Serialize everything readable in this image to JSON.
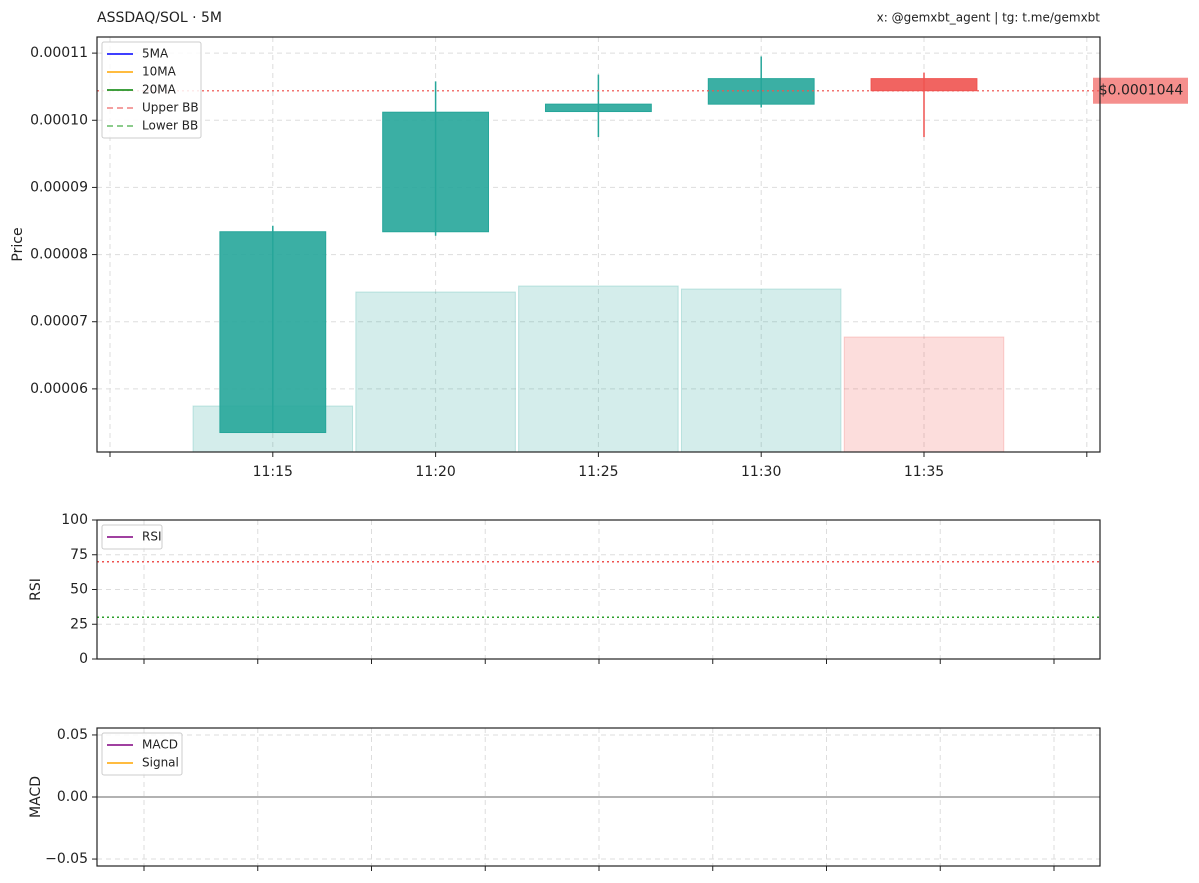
{
  "chart_data": [
    {
      "type": "candlestick",
      "title": "ASSDAQ/SOL · 5M",
      "subtitle": "x: @gemxbt_agent | tg: t.me/gemxbt",
      "ylabel": "Price",
      "categories": [
        null,
        "11:15",
        "11:20",
        "11:25",
        "11:30",
        "11:35",
        null
      ],
      "open": [
        null,
        5.35e-05,
        8.34e-05,
        0.0001013,
        0.0001024,
        0.0001062,
        null
      ],
      "high": [
        null,
        8.43e-05,
        0.0001058,
        0.0001068,
        0.0001095,
        0.0001071,
        null
      ],
      "low": [
        null,
        5.35e-05,
        8.28e-05,
        9.75e-05,
        0.0001019,
        9.75e-05,
        null
      ],
      "close": [
        null,
        8.34e-05,
        0.0001012,
        0.0001024,
        0.0001062,
        0.0001044,
        null
      ],
      "volume": [
        null,
        46,
        160,
        166,
        163,
        115,
        null
      ],
      "volume_ylim": [
        0,
        415
      ],
      "up_color": "#26a69a",
      "down_color": "#ef5350",
      "ylim": [
        5.06e-05,
        0.0001124
      ],
      "yticks": [
        6e-05,
        7e-05,
        8e-05,
        9e-05,
        {
          "value": 0.0001,
          "label": "0.00010"
        },
        0.00011
      ],
      "grid": true,
      "legend": "upper left",
      "series": [
        {
          "name": "5MA",
          "color": "#0000ff",
          "values": [
            null,
            null,
            null,
            null,
            null,
            null,
            null
          ]
        },
        {
          "name": "10MA",
          "color": "#ffa500",
          "values": [
            null,
            null,
            null,
            null,
            null,
            null,
            null
          ]
        },
        {
          "name": "20MA",
          "color": "#008000",
          "values": [
            null,
            null,
            null,
            null,
            null,
            null,
            null
          ]
        },
        {
          "name": "Upper BB",
          "color": "#f08080",
          "dashed": true,
          "values": [
            null,
            null,
            null,
            null,
            null,
            null,
            null
          ]
        },
        {
          "name": "Lower BB",
          "color": "#66bb66",
          "dashed": true,
          "values": [
            null,
            null,
            null,
            null,
            null,
            null,
            null
          ]
        }
      ],
      "current_price": {
        "value": 0.0001044,
        "label": "$0.0001044",
        "color": "#ef5350"
      }
    },
    {
      "type": "line",
      "ylabel": "RSI",
      "ylim": [
        0,
        100
      ],
      "yticks": [
        0,
        25,
        50,
        75,
        100
      ],
      "grid": true,
      "legend": "upper left",
      "categories": [
        null,
        null,
        null,
        null,
        null,
        null,
        null,
        null,
        null
      ],
      "series": [
        {
          "name": "RSI",
          "color": "#800080",
          "values": [
            null,
            null,
            null,
            null,
            null,
            null,
            null,
            null,
            null
          ]
        }
      ],
      "hlines": [
        {
          "value": 70,
          "color": "#ef5350",
          "style": "dotted"
        },
        {
          "value": 30,
          "color": "#2ca02c",
          "style": "dotted"
        }
      ]
    },
    {
      "type": "line",
      "ylabel": "MACD",
      "ylim": [
        -0.0556,
        0.0556
      ],
      "yticks": [
        {
          "value": -0.05,
          "label": "−0.05"
        },
        {
          "value": 0,
          "label": "0.00"
        },
        0.05
      ],
      "grid": true,
      "legend": "upper left",
      "categories": [
        null,
        null,
        null,
        null,
        null,
        null,
        null,
        null,
        null
      ],
      "series": [
        {
          "name": "MACD",
          "color": "#800080",
          "values": [
            null,
            null,
            null,
            null,
            null,
            null,
            null,
            null,
            null
          ]
        },
        {
          "name": "Signal",
          "color": "#ffa500",
          "values": [
            null,
            null,
            null,
            null,
            null,
            null,
            null,
            null,
            null
          ]
        }
      ],
      "hlines": [
        {
          "value": 0,
          "color": "#999999",
          "style": "solid"
        }
      ]
    }
  ]
}
